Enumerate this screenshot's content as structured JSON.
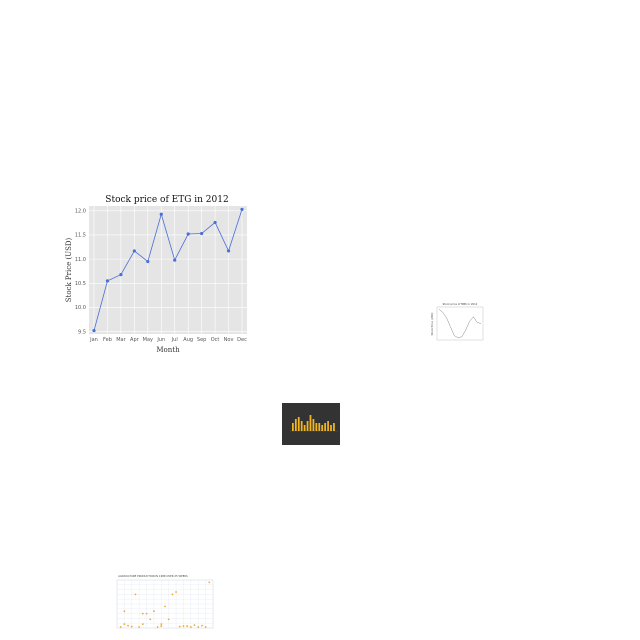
{
  "chart_data": [
    {
      "type": "line",
      "title": "Stock price of ETG in 2012",
      "xlabel": "Month",
      "ylabel": "Stock Price (USD)",
      "categories": [
        "Jan",
        "Feb",
        "Mar",
        "Apr",
        "May",
        "Jun",
        "Jul",
        "Aug",
        "Sep",
        "Oct",
        "Nov",
        "Dec"
      ],
      "values": [
        9.52,
        10.55,
        10.68,
        11.17,
        10.95,
        11.93,
        10.98,
        11.52,
        11.53,
        11.76,
        11.17,
        12.03
      ],
      "ylim": [
        9.45,
        12.1
      ],
      "yticks": [
        9.5,
        10.0,
        10.5,
        11.0,
        11.5,
        12.0
      ],
      "ytick_labels": [
        "9.5",
        "10.0",
        "10.5",
        "11.0",
        "11.5",
        "12.0"
      ],
      "grid": true,
      "colors": {
        "line": "#4a6fd8",
        "plot_bg": "#e5e5e5",
        "grid": "#ffffff"
      }
    },
    {
      "type": "line",
      "title": "Stock price of MBK in 2012",
      "ylabel": "Stock Price (USD)",
      "categories": [
        "Jan",
        "Feb",
        "Mar",
        "Apr",
        "May",
        "Jun",
        "Jul",
        "Aug",
        "Sep",
        "Oct",
        "Nov",
        "Dec"
      ],
      "values": [
        9.8,
        9.5,
        9.0,
        8.2,
        7.4,
        7.2,
        7.3,
        7.9,
        8.7,
        9.1,
        8.6,
        8.5
      ],
      "ylim": [
        7.0,
        10.0
      ],
      "grid": false,
      "colors": {
        "line": "#888888",
        "plot_bg": "#ffffff"
      }
    },
    {
      "type": "bar",
      "values": [
        4,
        6,
        7,
        5,
        3,
        5,
        8,
        6,
        4,
        4,
        3,
        4,
        5,
        3,
        4
      ],
      "ylim": [
        0,
        10
      ],
      "colors": {
        "bar": "#f2b61f",
        "plot_bg": "#333333"
      }
    },
    {
      "type": "scatter",
      "title": "AGRICULTURE PRODUCTION IN 1988 OVER 25 WEEKS",
      "x": [
        1,
        2,
        2,
        3,
        4,
        5,
        6,
        7,
        7,
        8,
        9,
        10,
        11,
        12,
        12,
        13,
        14,
        15,
        16,
        17,
        18,
        19,
        20,
        21,
        22,
        23,
        24,
        25
      ],
      "y": [
        2,
        35,
        8,
        5,
        3,
        70,
        2,
        30,
        8,
        30,
        18,
        35,
        2,
        8,
        4,
        45,
        18,
        70,
        75,
        3,
        4,
        4,
        2,
        6,
        2,
        5,
        2,
        95
      ],
      "xlim": [
        0,
        26
      ],
      "ylim": [
        0,
        100
      ],
      "grid": true,
      "colors": {
        "points": "#e8a93a",
        "grid": "#cfd6ea"
      }
    }
  ]
}
